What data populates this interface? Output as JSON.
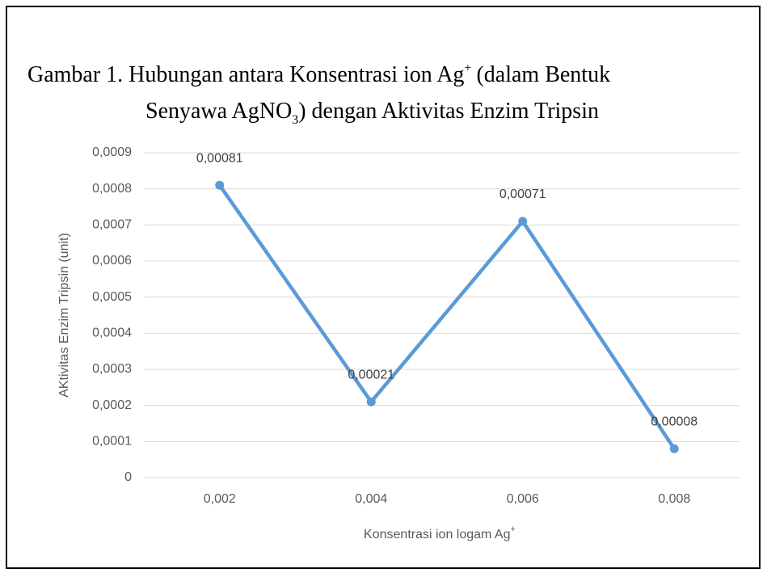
{
  "chart_data": {
    "type": "line",
    "title": [
      "Gambar 1. Hubungan antara Konsentrasi ion Ag",
      "+",
      "(dalam Bentuk",
      "Senyawa AgNO",
      "3",
      ") dengan Aktivitas Enzim Tripsin"
    ],
    "x_label": [
      "Konsentrasi ion logam Ag",
      "+"
    ],
    "y_label": "AKtivitas Enzim Tripsin (unit)",
    "categories": [
      "0,002",
      "0,004",
      "0,006",
      "0,008"
    ],
    "values": [
      0.00081,
      0.00021,
      0.00071,
      8e-05
    ],
    "value_labels": [
      "0,00081",
      "0,00021",
      "0,00071",
      "0,00008"
    ],
    "color": "#5b9bd5",
    "ylim": [
      0,
      0.0009
    ],
    "yticks": [
      0,
      {
        "value": 0.0001,
        "label": "0,0001"
      },
      {
        "value": 0.0002,
        "label": "0,0002"
      },
      {
        "value": 0.0003,
        "label": "0,0003"
      },
      {
        "value": 0.0004,
        "label": "0,0004"
      },
      {
        "value": 0.0005,
        "label": "0,0005"
      },
      {
        "value": 0.0006,
        "label": "0,0006"
      },
      {
        "value": 0.0007,
        "label": "0,0007"
      },
      {
        "value": 0.0008,
        "label": "0,0008"
      },
      {
        "value": 0.0009,
        "label": "0,0009"
      }
    ],
    "grid": true
  }
}
